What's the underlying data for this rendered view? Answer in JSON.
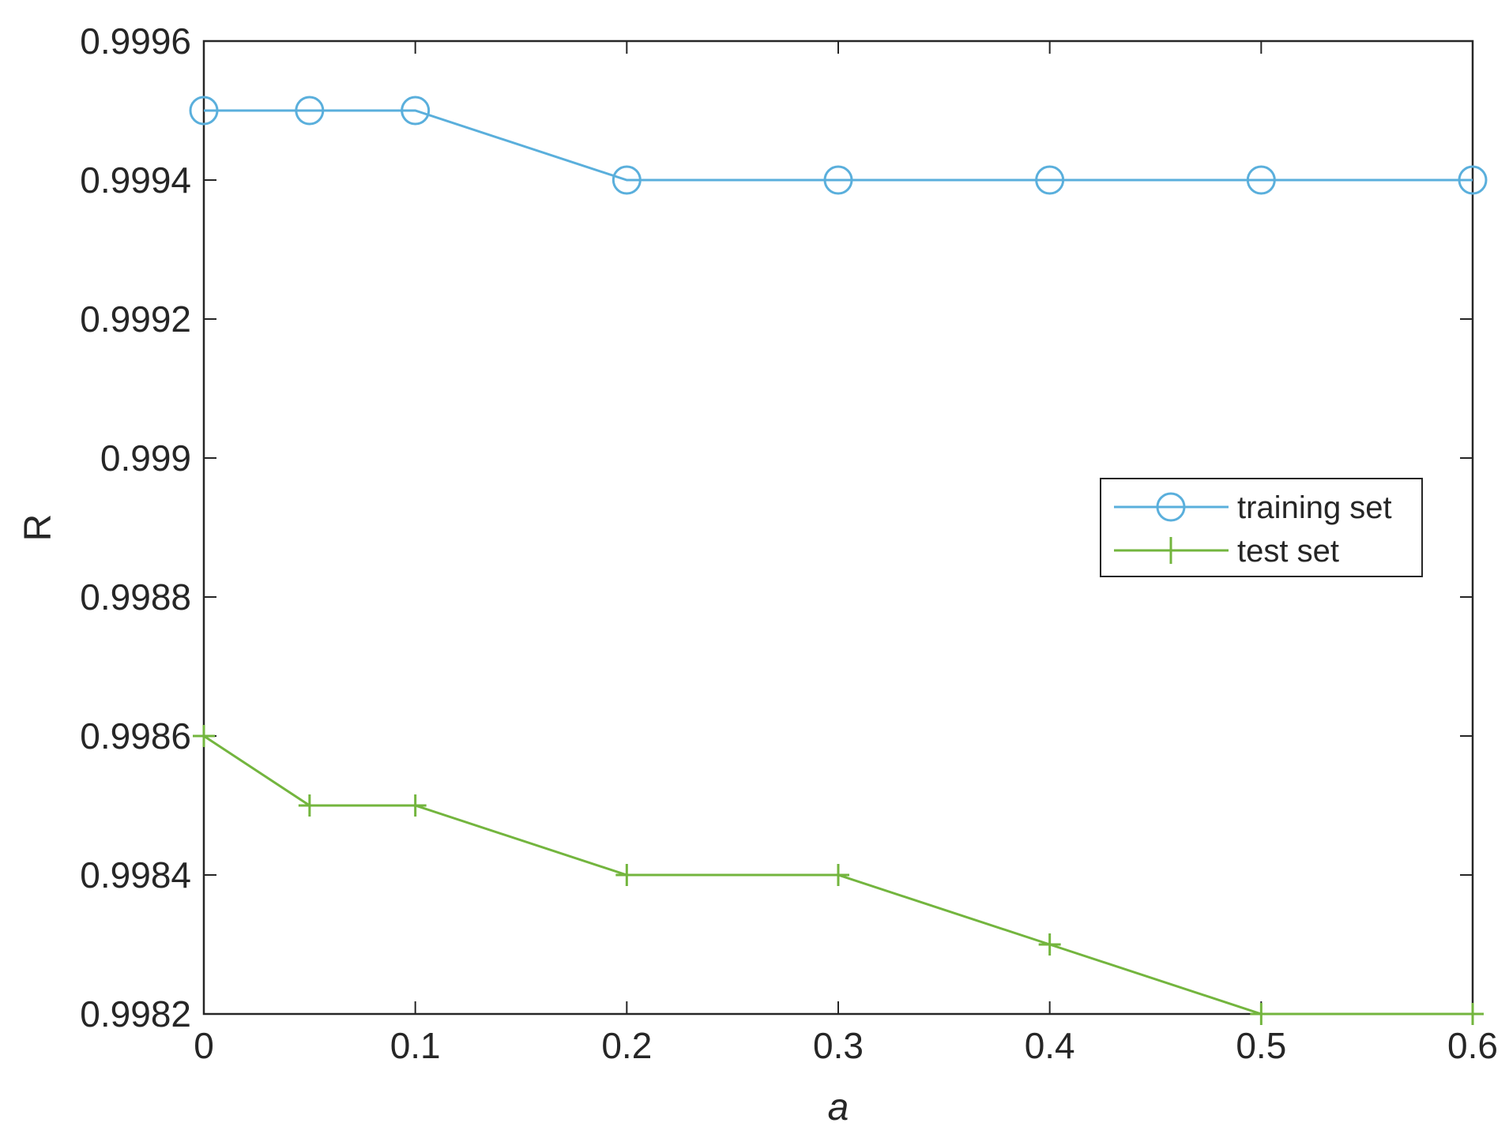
{
  "chart_data": {
    "type": "line",
    "xlabel": "a",
    "ylabel": "R",
    "xlim": [
      0,
      0.6
    ],
    "ylim": [
      0.9982,
      0.9996
    ],
    "x_ticks": [
      "0",
      "0.1",
      "0.2",
      "0.3",
      "0.4",
      "0.5",
      "0.6"
    ],
    "y_ticks": [
      "0.9982",
      "0.9984",
      "0.9986",
      "0.9988",
      "0.999",
      "0.9992",
      "0.9994",
      "0.9996"
    ],
    "grid": false,
    "legend_position": "right",
    "series": [
      {
        "name": "training set",
        "marker": "circle",
        "color": "#5aafdc",
        "x": [
          0,
          0.05,
          0.1,
          0.2,
          0.3,
          0.4,
          0.5,
          0.6
        ],
        "y": [
          0.9995,
          0.9995,
          0.9995,
          0.9994,
          0.9994,
          0.9994,
          0.9994,
          0.9994
        ]
      },
      {
        "name": "test set",
        "marker": "plus",
        "color": "#73b53e",
        "x": [
          0,
          0.05,
          0.1,
          0.2,
          0.3,
          0.4,
          0.5,
          0.6
        ],
        "y": [
          0.9986,
          0.9985,
          0.9985,
          0.9984,
          0.9984,
          0.9983,
          0.9982,
          0.9982
        ]
      }
    ]
  }
}
